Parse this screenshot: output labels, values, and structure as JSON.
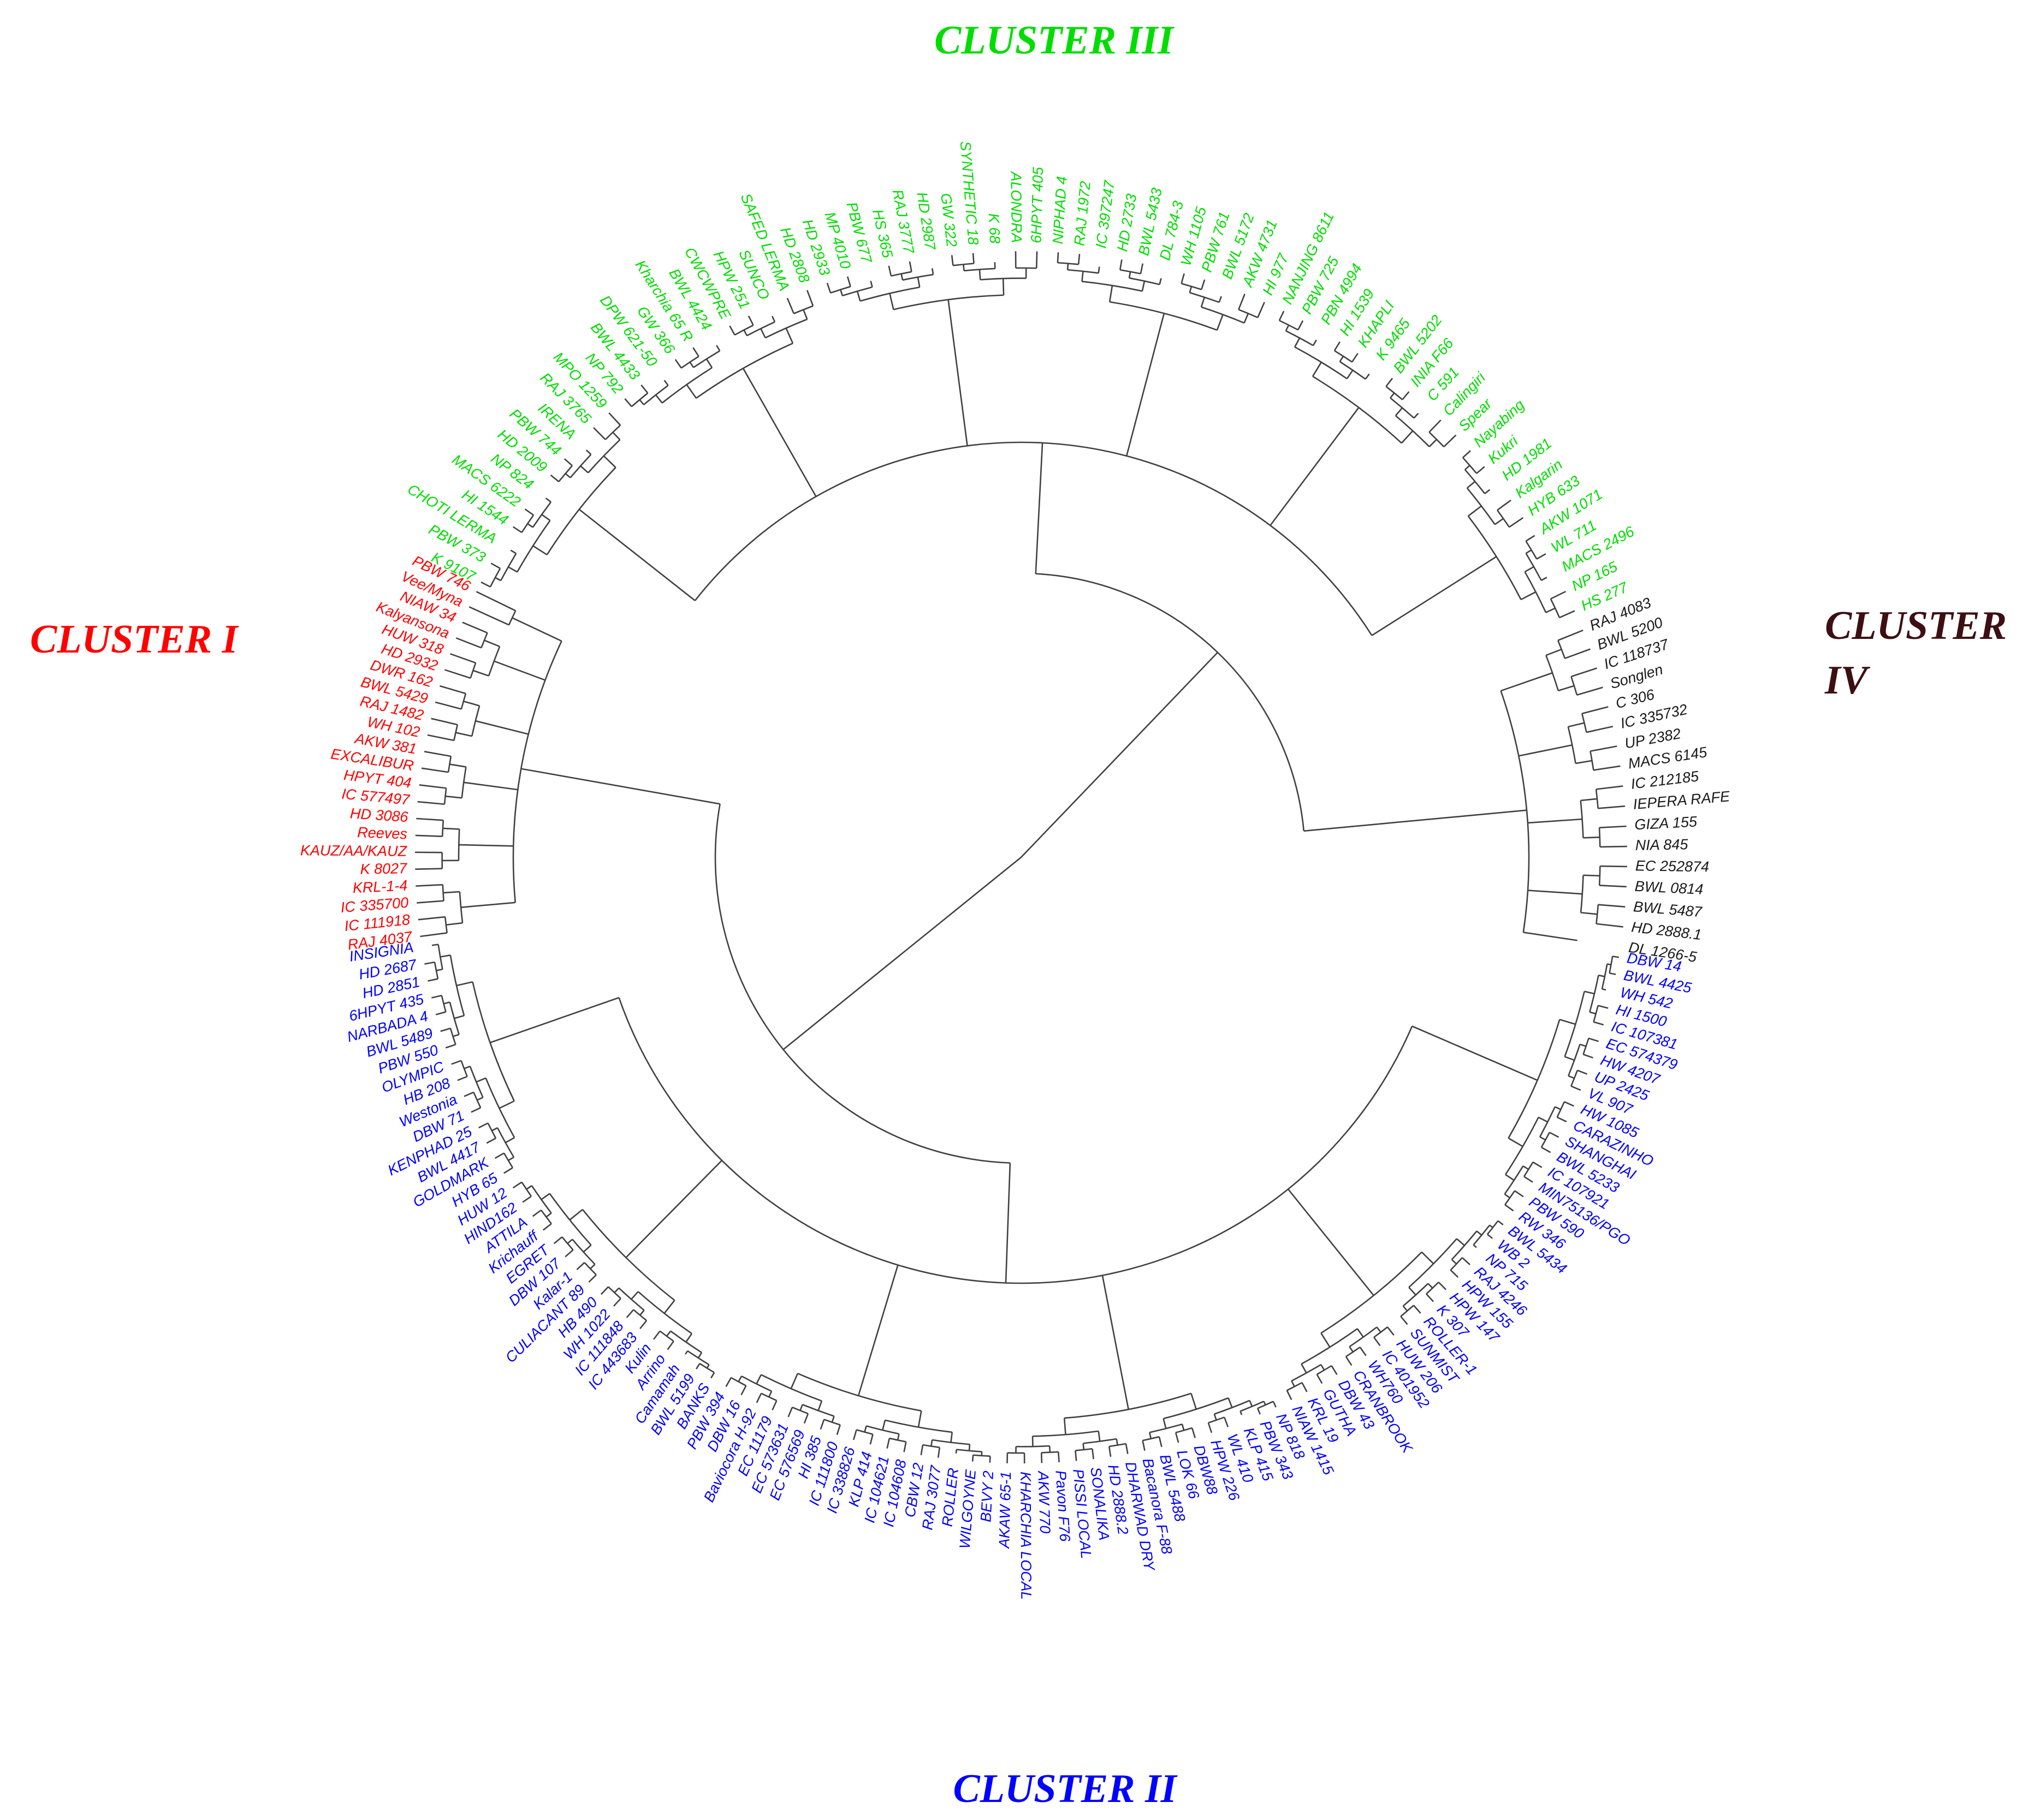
{
  "figure": {
    "type": "circular dendrogram",
    "clusters": [
      {
        "id": "I",
        "name": "CLUSTER I",
        "color": "#ff0000"
      },
      {
        "id": "II",
        "name": "CLUSTER II",
        "color": "#0000ff"
      },
      {
        "id": "III",
        "name": "CLUSTER III",
        "color": "#00dd00"
      },
      {
        "id": "IV",
        "name": "CLUSTER IV",
        "color": "#1a1a1a",
        "title_color": "#3d0f12"
      }
    ],
    "cluster_titles": {
      "I": "CLUSTER I",
      "II": "CLUSTER II",
      "III": "CLUSTER III",
      "IV_line1": "CLUSTER",
      "IV_line2": "IV"
    }
  },
  "leaves": {
    "IV": [
      "RAJ 4083",
      "BWL 5200",
      "IC 118737",
      "Songlen",
      "C 306",
      "IC 335732",
      "UP 2382",
      "MACS 6145",
      "IC 212185",
      "IEPERA  RAFE",
      "GIZA 155",
      "NIA 845",
      "EC 252874",
      "BWL 0814",
      "BWL 5487",
      "HD 2888.1",
      "DL 1266-5"
    ],
    "II": [
      "DBW 14",
      "BWL 4425",
      "WH 542",
      "HI 1500",
      "IC 107381",
      "EC 574379",
      "HW 4207",
      "UP 2425",
      "VL 907",
      "HW 1085",
      "CARAZINHO",
      "SHANGHAI",
      "BWL 5233",
      "IC 107921",
      "MIN75136/PGO",
      "PBW 590",
      "RW 346",
      "BWL 5434",
      "WB 2",
      "NP 715",
      "RAJ 4246",
      "HPW 155",
      "HPW 147",
      "K 307",
      "ROLLER-1",
      "SUNMIST",
      "HUW 206",
      "IC 401952",
      "WH760",
      "CRANBROOK",
      "DBW 43",
      "GUTHA",
      "KRL 19",
      "NIAW 1415",
      "NP 818",
      "PBW 343",
      "KLP 415",
      "WL 410",
      "HPW 226",
      "DBW88",
      "LOK 66",
      "BWL 5488",
      "Bacanora F-88",
      "DHARWAD DRY",
      "HD 2888.2",
      "SONALIKA",
      "PISSI LOCAL",
      "Pavon F76",
      "AKW 770",
      "KHARCHIA LOCAL",
      "AKAW 65-1",
      "BEVY 2",
      "WILGOYNE",
      "ROLLER",
      "RAJ 3077",
      "CBW 12",
      "IC 104608",
      "IC 104621",
      "KLP 414",
      "IC 338826",
      "IC 111800",
      "HI 385",
      "EC 576569",
      "EC 573631",
      "EC 11179",
      "Baviocora H-92",
      "DBW 16",
      "PBW 394",
      "BANKS",
      "BWL 5199",
      "Camamah",
      "Arrino",
      "Kulin",
      "IC 443683",
      "IC 111848",
      "WH 1022",
      "HB 490",
      "CULIACANT 89",
      "Kalar-1",
      "DBW 107",
      "EGRET",
      "Krichauff",
      "ATTILA",
      "HIND162",
      "HUW 12",
      "HYB 65",
      "GOLDMARK",
      "BWL 4417",
      "KENPHAD 25",
      "DBW 71",
      "Westonia",
      "HB 208",
      "OLYMPIC",
      "PBW 550",
      "BWL 5489",
      "NARBADA 4",
      "6HPYT 435",
      "HD 2851",
      "HD 2687",
      "INSIGNIA"
    ],
    "I": [
      "RAJ 4037",
      "IC 111918",
      "IC 335700",
      "KRL-1-4",
      "K 8027",
      "KAUZ/AA/KAUZ",
      "Reeves",
      "HD 3086",
      "IC 577497",
      "HPYT 404",
      "EXCALIBUR",
      "AKW 381",
      "WH 102",
      "RAJ 1482",
      "BWL 5429",
      "DWR 162",
      "HD 2932",
      "HUW 318",
      "Kalyansona",
      "NIAW 34",
      "Vee/Myna",
      "PBW 746"
    ],
    "III": [
      "K 9107",
      "PBW 373",
      "CHOTI LERMA",
      "HI 1544",
      "MACS 6222",
      "NP 824",
      "HD 2009",
      "PBW 744",
      "IRENA",
      "RAJ 3765",
      "MPO 1259",
      "NP 792",
      "BWL 4433",
      "DPW 621-50",
      "GW 366",
      "Kharchia 65 R",
      "BWL 4424",
      "CWCWPRE",
      "HPW 251",
      "SUNCO",
      "SAFED LERMA",
      "HD 2808",
      "HD 2933",
      "MP 4010",
      "PBW 677",
      "HS 365",
      "RAJ 3777",
      "HD 2987",
      "GW 322",
      "SYNTHETIC 18",
      "K 68",
      "ALONDRA",
      "6HPYT 405",
      "NIPHAD 4",
      "RAJ 1972",
      "IC 397247",
      "HD 2733",
      "BWL 5433",
      "DL 784-3",
      "WH 1105",
      "PBW 761",
      "BWL 5172",
      "AKW 4731",
      "HI 977",
      "NANJING 8611",
      "PBW 725",
      "PBN 4994",
      "HI 1539",
      "KHAPLI",
      "K 9465",
      "BWL 5202",
      "INIA F66",
      "C 591",
      "Calingiri",
      "Spear",
      "Nayabing",
      "Kukri",
      "HD 1981",
      "Kalgarin",
      "HYB 633",
      "AKW 1071",
      "WL 711",
      "MACS 2496",
      "NP 165",
      "HS 277"
    ]
  }
}
